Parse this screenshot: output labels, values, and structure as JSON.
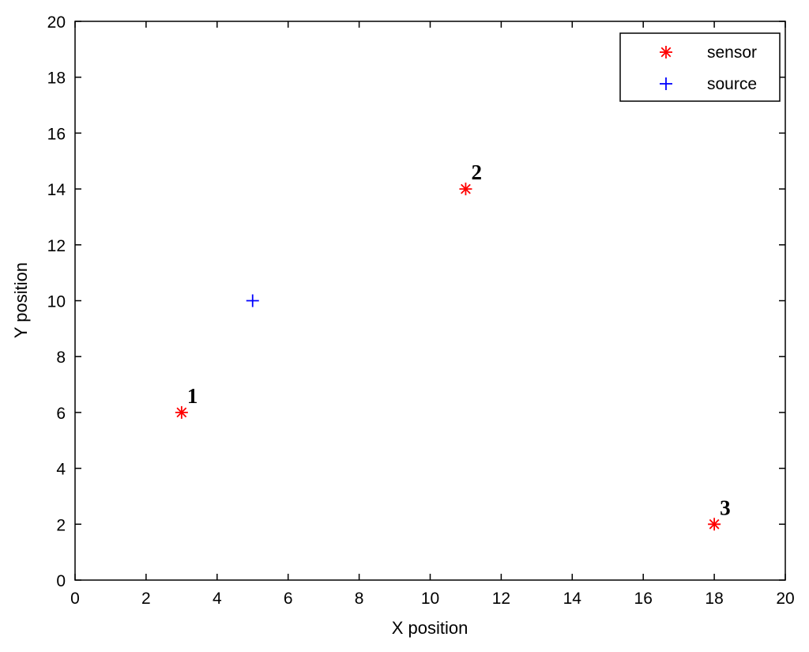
{
  "chart_data": {
    "type": "scatter",
    "title": "",
    "xlabel": "X position",
    "ylabel": "Y position",
    "xlim": [
      0,
      20
    ],
    "ylim": [
      0,
      20
    ],
    "xticks": [
      0,
      2,
      4,
      6,
      8,
      10,
      12,
      14,
      16,
      18,
      20
    ],
    "yticks": [
      0,
      2,
      4,
      6,
      8,
      10,
      12,
      14,
      16,
      18,
      20
    ],
    "grid": false,
    "legend_position": "top-right",
    "series": [
      {
        "name": "sensor",
        "marker": "asterisk",
        "color": "#ff0000",
        "points": [
          {
            "x": 3,
            "y": 6,
            "label": "1"
          },
          {
            "x": 11,
            "y": 14,
            "label": "2"
          },
          {
            "x": 18,
            "y": 2,
            "label": "3"
          }
        ]
      },
      {
        "name": "source",
        "marker": "plus",
        "color": "#0000ff",
        "points": [
          {
            "x": 5,
            "y": 10
          }
        ]
      }
    ]
  }
}
